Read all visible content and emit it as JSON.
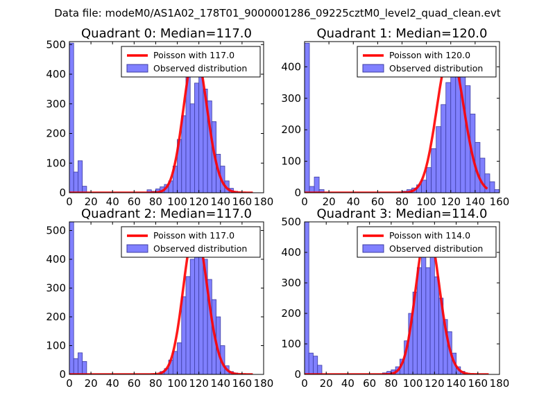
{
  "figure_title": "Data file: modeM0/AS1A02_178T01_9000001286_09225cztM0_level2_quad_clean.evt",
  "colors": {
    "hist_fill": "#8080ff",
    "hist_edge": "#3c3ca0",
    "poisson_line": "#ff0000",
    "axes": "#000000",
    "background": "#ffffff"
  },
  "chart_data": [
    {
      "type": "bar",
      "title": "Quadrant 0: Median=117.0",
      "median": 117.0,
      "legend": [
        "Poisson with 117.0",
        "Observed distribution"
      ],
      "legend_loc": "top-right",
      "xlim": [
        0,
        180
      ],
      "ylim": [
        0,
        510
      ],
      "xticks": [
        0,
        20,
        40,
        60,
        80,
        100,
        120,
        140,
        160,
        180
      ],
      "yticks": [
        0,
        100,
        200,
        300,
        400,
        500
      ],
      "bin_width": 4,
      "hist": [
        [
          0,
          505
        ],
        [
          4,
          70
        ],
        [
          8,
          108
        ],
        [
          12,
          22
        ],
        [
          72,
          10
        ],
        [
          76,
          5
        ],
        [
          80,
          13
        ],
        [
          84,
          20
        ],
        [
          88,
          28
        ],
        [
          92,
          40
        ],
        [
          96,
          90
        ],
        [
          100,
          180
        ],
        [
          104,
          260
        ],
        [
          108,
          450
        ],
        [
          112,
          300
        ],
        [
          116,
          370
        ],
        [
          120,
          400
        ],
        [
          124,
          350
        ],
        [
          128,
          310
        ],
        [
          132,
          240
        ],
        [
          136,
          130
        ],
        [
          140,
          90
        ],
        [
          144,
          40
        ],
        [
          148,
          15
        ],
        [
          152,
          5
        ]
      ],
      "poisson_scale": 475
    },
    {
      "type": "bar",
      "title": "Quadrant 1: Median=120.0",
      "median": 120.0,
      "legend": [
        "Poisson with 120.0",
        "Observed distribution"
      ],
      "legend_loc": "top-right",
      "xlim": [
        0,
        160
      ],
      "ylim": [
        0,
        480
      ],
      "xticks": [
        0,
        20,
        40,
        60,
        80,
        100,
        120,
        140,
        160
      ],
      "yticks": [
        0,
        100,
        200,
        300,
        400
      ],
      "bin_width": 4,
      "hist": [
        [
          0,
          475
        ],
        [
          4,
          20
        ],
        [
          8,
          50
        ],
        [
          12,
          10
        ],
        [
          80,
          5
        ],
        [
          84,
          10
        ],
        [
          88,
          15
        ],
        [
          92,
          25
        ],
        [
          96,
          40
        ],
        [
          100,
          80
        ],
        [
          104,
          140
        ],
        [
          108,
          210
        ],
        [
          112,
          280
        ],
        [
          116,
          350
        ],
        [
          120,
          400
        ],
        [
          124,
          410
        ],
        [
          128,
          380
        ],
        [
          132,
          340
        ],
        [
          136,
          250
        ],
        [
          140,
          160
        ],
        [
          144,
          110
        ],
        [
          148,
          60
        ],
        [
          152,
          35
        ],
        [
          156,
          10
        ]
      ],
      "poisson_scale": 450
    },
    {
      "type": "bar",
      "title": "Quadrant 2: Median=117.0",
      "median": 117.0,
      "legend": [
        "Poisson with 117.0",
        "Observed distribution"
      ],
      "legend_loc": "top-right",
      "xlim": [
        0,
        180
      ],
      "ylim": [
        0,
        530
      ],
      "xticks": [
        0,
        20,
        40,
        60,
        80,
        100,
        120,
        140,
        160,
        180
      ],
      "yticks": [
        0,
        100,
        200,
        300,
        400,
        500
      ],
      "bin_width": 4,
      "hist": [
        [
          0,
          530
        ],
        [
          4,
          55
        ],
        [
          8,
          75
        ],
        [
          12,
          45
        ],
        [
          84,
          10
        ],
        [
          88,
          20
        ],
        [
          92,
          50
        ],
        [
          96,
          80
        ],
        [
          100,
          110
        ],
        [
          104,
          270
        ],
        [
          108,
          340
        ],
        [
          112,
          400
        ],
        [
          116,
          470
        ],
        [
          120,
          415
        ],
        [
          124,
          400
        ],
        [
          128,
          330
        ],
        [
          132,
          260
        ],
        [
          136,
          200
        ],
        [
          140,
          100
        ],
        [
          144,
          30
        ],
        [
          148,
          10
        ],
        [
          152,
          5
        ]
      ],
      "poisson_scale": 510
    },
    {
      "type": "bar",
      "title": "Quadrant 3: Median=114.0",
      "median": 114.0,
      "legend": [
        "Poisson with 114.0",
        "Observed distribution"
      ],
      "legend_loc": "top-right",
      "xlim": [
        0,
        180
      ],
      "ylim": [
        0,
        500
      ],
      "xticks": [
        0,
        20,
        40,
        60,
        80,
        100,
        120,
        140,
        160,
        180
      ],
      "yticks": [
        0,
        100,
        200,
        300,
        400,
        500
      ],
      "bin_width": 4,
      "hist": [
        [
          0,
          500
        ],
        [
          4,
          70
        ],
        [
          8,
          60
        ],
        [
          12,
          30
        ],
        [
          72,
          5
        ],
        [
          76,
          10
        ],
        [
          80,
          15
        ],
        [
          84,
          25
        ],
        [
          88,
          50
        ],
        [
          92,
          110
        ],
        [
          96,
          200
        ],
        [
          100,
          270
        ],
        [
          104,
          350
        ],
        [
          108,
          420
        ],
        [
          112,
          350
        ],
        [
          116,
          420
        ],
        [
          120,
          320
        ],
        [
          124,
          250
        ],
        [
          128,
          180
        ],
        [
          132,
          140
        ],
        [
          136,
          70
        ],
        [
          140,
          25
        ],
        [
          144,
          10
        ]
      ],
      "poisson_scale": 480
    }
  ]
}
